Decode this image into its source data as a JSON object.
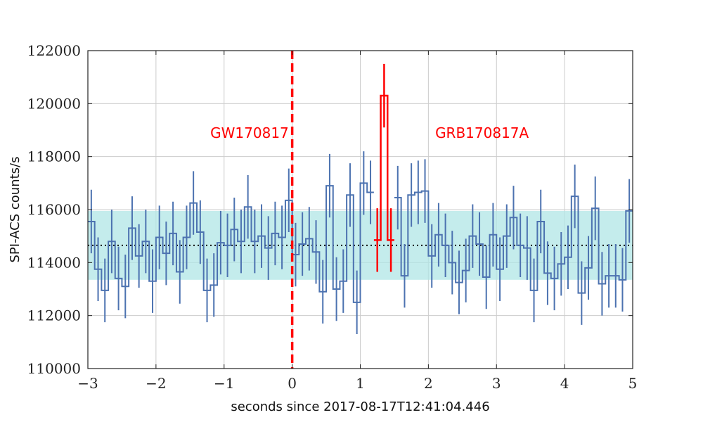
{
  "chart_data": {
    "type": "line",
    "xlabel": "seconds since 2017-08-17T12:41:04.446",
    "ylabel": "SPI-ACS counts/s",
    "xlim": [
      -3,
      5
    ],
    "ylim": [
      110000,
      122000
    ],
    "x_ticks": [
      -3,
      -2,
      -1,
      0,
      1,
      2,
      3,
      4,
      5
    ],
    "x_tick_labels": [
      "−3",
      "−2",
      "−1",
      "0",
      "1",
      "2",
      "3",
      "4",
      "5"
    ],
    "y_ticks": [
      110000,
      112000,
      114000,
      116000,
      118000,
      120000,
      122000
    ],
    "y_tick_labels": [
      "110000",
      "112000",
      "114000",
      "116000",
      "118000",
      "120000",
      "122000"
    ],
    "grid": true,
    "bin_width": 0.1,
    "error": 1200,
    "background_mean": 114650,
    "background_band": [
      113350,
      115950
    ],
    "series": [
      {
        "bin_start": [
          -3.0,
          -2.9,
          -2.8,
          -2.7,
          -2.6,
          -2.5,
          -2.4,
          -2.3,
          -2.2,
          -2.1,
          -2.0,
          -1.9,
          -1.8,
          -1.7,
          -1.6,
          -1.5,
          -1.4,
          -1.3,
          -1.2,
          -1.1,
          -1.0,
          -0.9,
          -0.8,
          -0.7,
          -0.6,
          -0.5,
          -0.4,
          -0.3,
          -0.2,
          -0.1,
          0.0,
          0.1,
          0.2,
          0.3,
          0.4,
          0.5,
          0.6,
          0.7,
          0.8,
          0.9,
          1.0,
          1.1,
          1.2,
          1.3,
          1.4,
          1.5,
          1.6,
          1.7,
          1.8,
          1.9,
          2.0,
          2.1,
          2.2,
          2.3,
          2.4,
          2.5,
          2.6,
          2.7,
          2.8,
          2.9,
          3.0,
          3.1,
          3.2,
          3.3,
          3.4,
          3.5,
          3.6,
          3.7,
          3.8,
          3.9,
          4.0,
          4.1,
          4.2,
          4.3,
          4.4,
          4.5,
          4.6,
          4.7,
          4.8,
          4.9
        ],
        "values": [
          115550,
          113750,
          112950,
          114800,
          113400,
          113100,
          115300,
          114250,
          114800,
          113300,
          114950,
          114350,
          115100,
          113650,
          114950,
          116250,
          115150,
          112950,
          113150,
          114750,
          114650,
          115250,
          114800,
          116100,
          114800,
          115000,
          114550,
          115100,
          114950,
          116350,
          114300,
          114700,
          114900,
          114400,
          112900,
          116900,
          113000,
          113300,
          116550,
          112500,
          117000,
          116650,
          114850,
          120300,
          114850,
          116450,
          113500,
          116550,
          116650,
          116700,
          114250,
          115050,
          114650,
          114000,
          113250,
          113700,
          115000,
          114700,
          113450,
          115050,
          113750,
          115000,
          115700,
          114650,
          114550,
          112950,
          115550,
          113600,
          113400,
          113950,
          114200,
          116500,
          112850,
          113800,
          116050,
          113200,
          113500,
          113500,
          113350,
          115950
        ]
      }
    ],
    "markers": [
      {
        "x": 0,
        "label": "GW170817",
        "label_x": -0.05,
        "label_y": 118900,
        "anchor": "end"
      },
      {
        "label": "GRB170817A",
        "label_x": 2.1,
        "label_y": 118900,
        "anchor": "start"
      }
    ],
    "colors": {
      "series": "#4c72b0",
      "peak": "#ff0000",
      "band": "#b0e6e6",
      "mean_line": "#111111",
      "grid": "#cccccc",
      "marker": "#ff0000"
    }
  }
}
